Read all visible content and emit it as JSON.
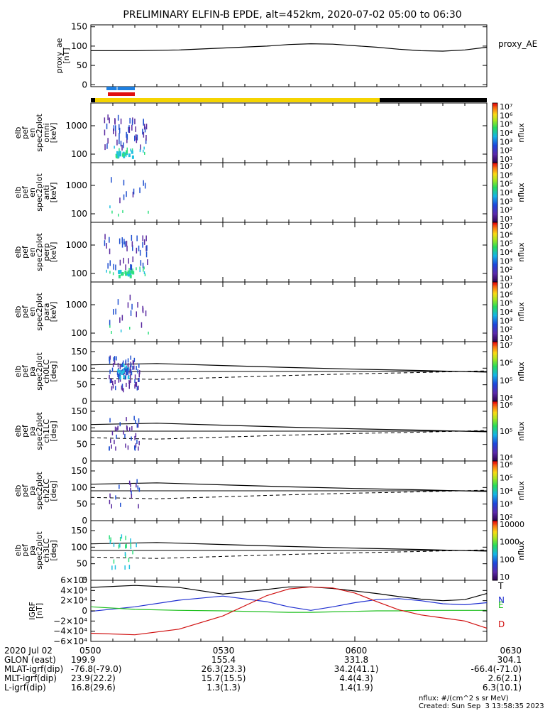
{
  "title": "PRELIMINARY ELFIN-B EPDE, alt=452km, 2020-07-02 05:00 to 06:30",
  "colors": {
    "ae_line": "#000000",
    "bar_blue": "#1e7fe0",
    "bar_red": "#e01010",
    "bar_yellow": "#f5d400",
    "bar_black": "#000000",
    "spec_purple": "#5a2aa0",
    "spec_blue": "#2050d0",
    "spec_cyan": "#20c0e0",
    "spec_green": "#30e080",
    "igrf_T": "#000000",
    "igrf_N": "#1f2fd0",
    "igrf_E": "#20c020",
    "igrf_D": "#d01010"
  },
  "chart_data": [
    {
      "type": "line",
      "panel": "proxy_ae",
      "ylabel": "proxy_ae\n[nT]",
      "legend": "proxy_AE",
      "ylim": [
        -5,
        155
      ],
      "yticks": [
        "150",
        "100",
        "50",
        "0"
      ],
      "ytick_values": [
        150,
        100,
        50,
        0
      ],
      "x_minutes": [
        0,
        10,
        20,
        30,
        40,
        45,
        50,
        55,
        60,
        65,
        70,
        75,
        80,
        85,
        90
      ],
      "values": [
        88,
        88,
        90,
        95,
        100,
        104,
        106,
        105,
        101,
        97,
        92,
        88,
        87,
        90,
        97
      ]
    },
    {
      "type": "heatmap",
      "panel": "spec_omni",
      "ylabel": "elb\npef\nen\nspec2plot\nomni\n[keV]",
      "yticks": [
        "1000",
        "100"
      ],
      "ytick_values": [
        1000,
        100
      ],
      "ylog": true,
      "colorbar_label": "nflux",
      "colorbar_ticks": [
        "10⁷",
        "10⁶",
        "10⁵",
        "10⁴",
        "10³",
        "10²",
        "10¹"
      ],
      "colorbar_range": [
        1,
        7
      ]
    },
    {
      "type": "heatmap",
      "panel": "spec_anti",
      "ylabel": "elb\npef\nen\nspec2plot\nanti\n[keV]",
      "yticks": [
        "1000",
        "100"
      ],
      "ytick_values": [
        1000,
        100
      ],
      "ylog": true,
      "colorbar_label": "nflux",
      "colorbar_ticks": [
        "10⁷",
        "10⁶",
        "10⁵",
        "10⁴",
        "10³",
        "10²",
        "10¹"
      ],
      "colorbar_range": [
        1,
        7
      ]
    },
    {
      "type": "heatmap",
      "panel": "spec_perp",
      "ylabel": "elb\npef\nen\nspec2plot\nperp\n[keV]",
      "yticks": [
        "1000",
        "100"
      ],
      "ytick_values": [
        1000,
        100
      ],
      "ylog": true,
      "colorbar_label": "nflux",
      "colorbar_ticks": [
        "10⁷",
        "10⁶",
        "10⁵",
        "10⁴",
        "10³",
        "10²",
        "10¹"
      ],
      "colorbar_range": [
        1,
        7
      ]
    },
    {
      "type": "heatmap",
      "panel": "spec_para",
      "ylabel": "elb\npef\nen\nspec2plot\npara\n[keV]",
      "yticks": [
        "1000",
        "100"
      ],
      "ytick_values": [
        1000,
        100
      ],
      "ylog": true,
      "colorbar_label": "nflux",
      "colorbar_ticks": [
        "10⁷",
        "10⁶",
        "10⁵",
        "10⁴",
        "10³",
        "10²",
        "10¹"
      ],
      "colorbar_range": [
        1,
        7
      ]
    },
    {
      "type": "heatmap",
      "panel": "pa_ch0",
      "ylabel": "elb\npef\npa\nspec2plot\nch0LC\n[deg]",
      "ylim": [
        0,
        180
      ],
      "yticks": [
        "150",
        "100",
        "50",
        "0"
      ],
      "ytick_values": [
        150,
        100,
        50,
        0
      ],
      "colorbar_label": "nflux",
      "colorbar_ticks": [
        "10⁷",
        "10⁶",
        "10⁵",
        "10⁴"
      ],
      "colorbar_range": [
        3.5,
        7
      ]
    },
    {
      "type": "heatmap",
      "panel": "pa_ch1",
      "ylabel": "elb\npef\npa\nspec2plot\nch1LC\n[deg]",
      "ylim": [
        0,
        180
      ],
      "yticks": [
        "150",
        "100",
        "50",
        "0"
      ],
      "ytick_values": [
        150,
        100,
        50,
        0
      ],
      "colorbar_label": "nflux",
      "colorbar_ticks": [
        "10⁶",
        "10⁵",
        "10⁴"
      ],
      "colorbar_range": [
        3.5,
        6.5
      ]
    },
    {
      "type": "heatmap",
      "panel": "pa_ch2",
      "ylabel": "elb\npef\npa\nspec2plot\nch2LC\n[deg]",
      "ylim": [
        0,
        180
      ],
      "yticks": [
        "150",
        "100",
        "50",
        "0"
      ],
      "ytick_values": [
        150,
        100,
        50,
        0
      ],
      "colorbar_label": "nflux",
      "colorbar_ticks": [
        "10⁶",
        "10⁵",
        "10⁴",
        "10³",
        "10²"
      ],
      "colorbar_range": [
        1.5,
        6.5
      ]
    },
    {
      "type": "heatmap",
      "panel": "pa_ch3",
      "ylabel": "elb\npef\npa\nspec2plot\nch3LC\n[deg]",
      "ylim": [
        0,
        180
      ],
      "yticks": [
        "150",
        "100",
        "50",
        "0"
      ],
      "ytick_values": [
        150,
        100,
        50,
        0
      ],
      "colorbar_label": "nflux",
      "colorbar_ticks": [
        "10000",
        "1000",
        "100",
        "10"
      ],
      "colorbar_range": [
        1,
        4.3
      ]
    },
    {
      "type": "line",
      "panel": "igrf",
      "ylabel": "IGRF\n[nT]",
      "ylim": [
        -60000,
        60000
      ],
      "yticks": [
        "6×10⁴",
        "4×10⁴",
        "2×10⁴",
        "0",
        "−2×10⁴",
        "−4×10⁴",
        "−6×10⁴"
      ],
      "ytick_values": [
        60000,
        40000,
        20000,
        0,
        -20000,
        -40000,
        -60000
      ],
      "x_minutes": [
        0,
        10,
        20,
        30,
        40,
        45,
        50,
        55,
        60,
        65,
        70,
        75,
        80,
        85,
        90
      ],
      "series": [
        {
          "name": "T",
          "values": [
            46000,
            50000,
            46000,
            33000,
            42000,
            47000,
            47000,
            44000,
            39000,
            34000,
            28000,
            23000,
            20000,
            22000,
            34000
          ]
        },
        {
          "name": "N",
          "values": [
            -1000,
            8000,
            21000,
            29000,
            18000,
            8000,
            1000,
            8000,
            16000,
            22000,
            24000,
            20000,
            14000,
            12000,
            16000
          ]
        },
        {
          "name": "E",
          "values": [
            8000,
            3000,
            1000,
            0,
            -2000,
            -3000,
            -3000,
            -2000,
            -1000,
            0,
            0,
            1000,
            1000,
            1000,
            1000
          ]
        },
        {
          "name": "D",
          "values": [
            -44000,
            -47000,
            -36000,
            -10000,
            30000,
            43000,
            47000,
            45000,
            35000,
            18000,
            2000,
            -8000,
            -14000,
            -20000,
            -34000
          ]
        }
      ]
    }
  ],
  "footer": {
    "rows": [
      {
        "label": "2020 Jul 02",
        "cells": [
          "0500",
          "0530",
          "0600",
          "0630"
        ]
      },
      {
        "label": "GLON (east)",
        "cells": [
          "199.9",
          "155.4",
          "331.8",
          "304.1"
        ]
      },
      {
        "label": "MLAT-igrf(dip)",
        "cells": [
          "-76.8(-79.0)",
          "26.3(23.3)",
          "34.2(41.1)",
          "-66.4(-71.0)"
        ]
      },
      {
        "label": "MLT-igrf(dip)",
        "cells": [
          "23.9(22.2)",
          "15.7(15.5)",
          "4.4(4.3)",
          "2.6(2.1)"
        ]
      },
      {
        "label": "L-igrf(dip)",
        "cells": [
          "16.8(29.6)",
          "1.3(1.3)",
          "1.4(1.9)",
          "6.3(10.1)"
        ]
      }
    ],
    "units_note": "nflux: #/(cm^2 s sr MeV)",
    "created": "Created: Sun Sep  3 13:58:35 2023"
  }
}
